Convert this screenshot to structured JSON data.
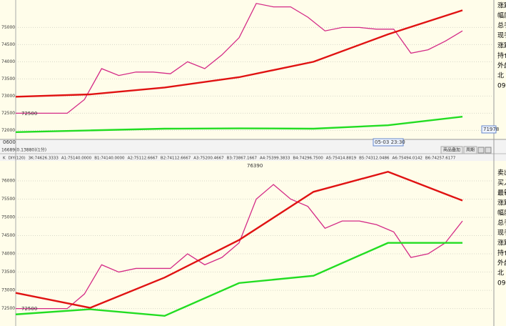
{
  "panels": [
    {
      "ylim": [
        71800,
        75800
      ],
      "yticks": [
        75000,
        74500,
        74000,
        73500,
        73000,
        72500,
        72000
      ],
      "grid": true,
      "series": [
        {
          "color": "#d42a86",
          "values": [
            72500,
            72500,
            72500,
            72500,
            72900,
            73800,
            73600,
            73700,
            73700,
            73650,
            74000,
            73800,
            74200,
            74700,
            75700,
            75600,
            75600,
            75300,
            74900,
            75000,
            75000,
            74950,
            74950,
            74250,
            74350,
            74600,
            74900
          ]
        },
        {
          "color": "#e01212",
          "values": [
            72980,
            73050,
            73250,
            73550,
            74000,
            74800,
            75500
          ]
        },
        {
          "color": "#22dd22",
          "values": [
            71950,
            72000,
            72050,
            72060,
            72050,
            72150,
            72400
          ]
        }
      ],
      "labels": [
        "72500",
        "71978",
        "05-03 23:30"
      ],
      "side": [
        "涨跌",
        "幅度",
        "总手",
        "现手",
        "涨跌",
        "持仓",
        "外盘",
        "北",
        "09"
      ]
    },
    {
      "ylim": [
        72100,
        76470
      ],
      "yticks": [
        76000,
        75500,
        75000,
        74500,
        74000,
        73500,
        73000,
        72500
      ],
      "grid": true,
      "series": [
        {
          "color": "#d42a86",
          "values": [
            72500,
            72500,
            72500,
            72500,
            72900,
            73700,
            73500,
            73600,
            73600,
            73600,
            74000,
            73700,
            73900,
            74300,
            75500,
            75900,
            75500,
            75300,
            74700,
            74900,
            74900,
            74800,
            74600,
            73900,
            74000,
            74300,
            74900
          ]
        },
        {
          "color": "#e01212",
          "values": [
            72930,
            72520,
            73350,
            74380,
            75700,
            76250,
            75460
          ]
        },
        {
          "color": "#22dd22",
          "values": [
            72340,
            72480,
            72300,
            73200,
            73400,
            74300,
            74300
          ]
        }
      ],
      "labels": [
        "76390",
        "72500"
      ],
      "side": [
        "卖出",
        "买入",
        "最新",
        "涨跌",
        "幅度",
        "总手",
        "现手",
        "涨跌",
        "持仓",
        "外盘",
        "北",
        "09"
      ]
    }
  ],
  "axis_time": "0600",
  "toolbar": {
    "info": "16689(0.13880)(1分)",
    "buttons": [
      "商品叠加",
      "周期"
    ]
  },
  "indicator": [
    {
      "text": "K",
      "color": "#000000"
    },
    {
      "text": "DIY(120)",
      "color": "#000000"
    },
    {
      "text": "3K:74626.3333",
      "color": "#000000"
    },
    {
      "text": "A1:75140.0000",
      "color": "#e08000"
    },
    {
      "text": "B1:74140.0000",
      "color": "#000080"
    },
    {
      "text": "A2:75112.6667",
      "color": "#0000cc"
    },
    {
      "text": "B2:74112.6667",
      "color": "#cc44cc"
    },
    {
      "text": "A3:75200.4667",
      "color": "#00aaaa"
    },
    {
      "text": "B3:73867.1667",
      "color": "#009900"
    },
    {
      "text": "A4:75399.3833",
      "color": "#000080"
    },
    {
      "text": "B4:74296.7500",
      "color": "#000000"
    },
    {
      "text": "A5:75414.8819",
      "color": "#e08000"
    },
    {
      "text": "B5:74312.0486",
      "color": "#000080"
    },
    {
      "text": "A6:75494.0142",
      "color": "#000080"
    },
    {
      "text": "B6:74257.6177",
      "color": "#cc44cc"
    }
  ]
}
